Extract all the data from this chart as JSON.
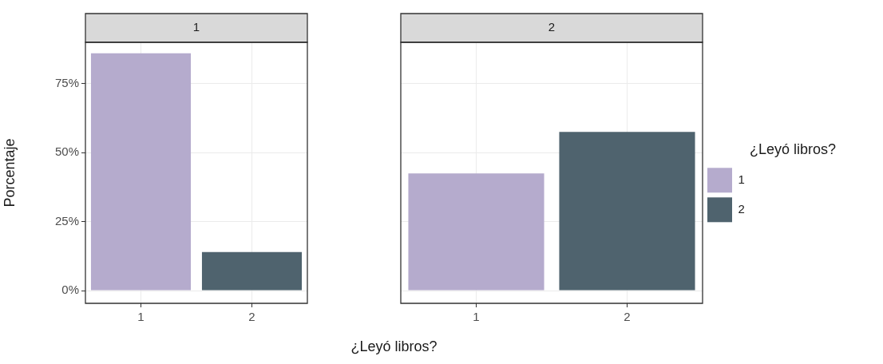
{
  "chart_data": [
    {
      "type": "bar",
      "title": "1",
      "xlabel": "¿Leyó libros?",
      "ylabel": "Porcentaje",
      "categories": [
        "1",
        "2"
      ],
      "values": [
        86,
        14
      ],
      "colors": [
        "#b5abcd",
        "#4f636e"
      ],
      "ylim": [
        -4.6,
        90
      ],
      "yticks": [
        {
          "value": 0,
          "label": "0%"
        },
        {
          "value": 25,
          "label": "25%"
        },
        {
          "value": 50,
          "label": "50%"
        },
        {
          "value": 75,
          "label": "75%"
        }
      ],
      "grid": true
    },
    {
      "type": "bar",
      "title": "2",
      "categories": [
        "1",
        "2"
      ],
      "series": [
        {
          "name": "1",
          "color": "#b5abcd",
          "values": [
            42.5,
            null
          ]
        },
        {
          "name": "2",
          "color": "#4f636e",
          "values": [
            null,
            57.5
          ]
        }
      ],
      "ylim": [
        -4.6,
        90
      ],
      "yticks": [
        {
          "value": 0,
          "label": null
        },
        {
          "value": 25,
          "label": null
        },
        {
          "value": 50,
          "label": null
        },
        {
          "value": 75,
          "label": null
        }
      ],
      "grid": true,
      "tick_labels": "x",
      "legend": "right",
      "legend_title": "¿Leyó libros?"
    }
  ]
}
